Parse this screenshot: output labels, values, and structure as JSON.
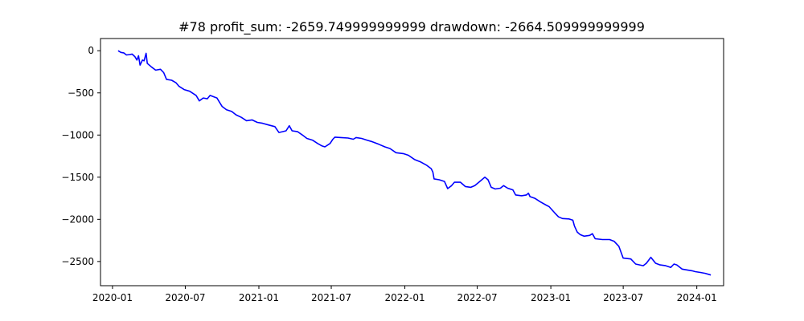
{
  "chart_data": {
    "type": "line",
    "title": "#78   profit_sum: -2659.749999999999 drawdown: -2664.509999999999",
    "xlabel": "",
    "ylabel": "",
    "x_axis_type": "date",
    "xlim": [
      "2019-12-02",
      "2024-03-08"
    ],
    "ylim": [
      -2787,
      145
    ],
    "grid": false,
    "x_ticks": [
      {
        "date": "2020-01-01",
        "label": "2020-01"
      },
      {
        "date": "2020-07-01",
        "label": "2020-07"
      },
      {
        "date": "2021-01-01",
        "label": "2021-01"
      },
      {
        "date": "2021-07-01",
        "label": "2021-07"
      },
      {
        "date": "2022-01-01",
        "label": "2022-01"
      },
      {
        "date": "2022-07-01",
        "label": "2022-07"
      },
      {
        "date": "2023-01-01",
        "label": "2023-01"
      },
      {
        "date": "2023-07-01",
        "label": "2023-07"
      },
      {
        "date": "2024-01-01",
        "label": "2024-01"
      }
    ],
    "y_ticks": [
      {
        "value": 0,
        "label": "0"
      },
      {
        "value": -500,
        "label": "−500"
      },
      {
        "value": -1000,
        "label": "−1000"
      },
      {
        "value": -1500,
        "label": "−1500"
      },
      {
        "value": -2000,
        "label": "−2000"
      },
      {
        "value": -2500,
        "label": "−2500"
      }
    ],
    "series": [
      {
        "color": "#0000ff",
        "points": [
          [
            "2020-01-15",
            0
          ],
          [
            "2020-01-22",
            -20
          ],
          [
            "2020-01-29",
            -25
          ],
          [
            "2020-02-05",
            -50
          ],
          [
            "2020-02-12",
            -45
          ],
          [
            "2020-02-19",
            -40
          ],
          [
            "2020-02-26",
            -70
          ],
          [
            "2020-03-02",
            -110
          ],
          [
            "2020-03-06",
            -60
          ],
          [
            "2020-03-10",
            -170
          ],
          [
            "2020-03-16",
            -110
          ],
          [
            "2020-03-20",
            -120
          ],
          [
            "2020-03-25",
            -30
          ],
          [
            "2020-03-28",
            -150
          ],
          [
            "2020-04-08",
            -195
          ],
          [
            "2020-04-18",
            -230
          ],
          [
            "2020-04-30",
            -220
          ],
          [
            "2020-05-08",
            -260
          ],
          [
            "2020-05-15",
            -340
          ],
          [
            "2020-05-28",
            -350
          ],
          [
            "2020-06-08",
            -380
          ],
          [
            "2020-06-15",
            -420
          ],
          [
            "2020-06-28",
            -460
          ],
          [
            "2020-07-12",
            -480
          ],
          [
            "2020-07-28",
            -530
          ],
          [
            "2020-08-05",
            -595
          ],
          [
            "2020-08-15",
            -560
          ],
          [
            "2020-08-25",
            -570
          ],
          [
            "2020-09-01",
            -530
          ],
          [
            "2020-09-18",
            -560
          ],
          [
            "2020-10-01",
            -660
          ],
          [
            "2020-10-12",
            -700
          ],
          [
            "2020-10-25",
            -720
          ],
          [
            "2020-11-05",
            -760
          ],
          [
            "2020-11-18",
            -790
          ],
          [
            "2020-12-01",
            -830
          ],
          [
            "2020-12-15",
            -820
          ],
          [
            "2020-12-28",
            -850
          ],
          [
            "2021-01-10",
            -860
          ],
          [
            "2021-01-25",
            -880
          ],
          [
            "2021-02-10",
            -900
          ],
          [
            "2021-02-20",
            -970
          ],
          [
            "2021-03-01",
            -960
          ],
          [
            "2021-03-10",
            -950
          ],
          [
            "2021-03-18",
            -890
          ],
          [
            "2021-03-25",
            -950
          ],
          [
            "2021-04-08",
            -960
          ],
          [
            "2021-04-20",
            -1000
          ],
          [
            "2021-05-01",
            -1040
          ],
          [
            "2021-05-15",
            -1060
          ],
          [
            "2021-05-28",
            -1100
          ],
          [
            "2021-06-08",
            -1130
          ],
          [
            "2021-06-15",
            -1140
          ],
          [
            "2021-06-28",
            -1100
          ],
          [
            "2021-07-05",
            -1050
          ],
          [
            "2021-07-10",
            -1025
          ],
          [
            "2021-07-25",
            -1030
          ],
          [
            "2021-08-12",
            -1035
          ],
          [
            "2021-08-25",
            -1050
          ],
          [
            "2021-09-01",
            -1030
          ],
          [
            "2021-09-15",
            -1040
          ],
          [
            "2021-09-28",
            -1060
          ],
          [
            "2021-10-12",
            -1080
          ],
          [
            "2021-10-28",
            -1110
          ],
          [
            "2021-11-12",
            -1140
          ],
          [
            "2021-11-25",
            -1160
          ],
          [
            "2021-12-10",
            -1210
          ],
          [
            "2021-12-28",
            -1220
          ],
          [
            "2022-01-10",
            -1240
          ],
          [
            "2022-01-25",
            -1290
          ],
          [
            "2022-02-10",
            -1320
          ],
          [
            "2022-02-25",
            -1360
          ],
          [
            "2022-03-08",
            -1400
          ],
          [
            "2022-03-12",
            -1440
          ],
          [
            "2022-03-15",
            -1520
          ],
          [
            "2022-03-28",
            -1530
          ],
          [
            "2022-04-10",
            -1550
          ],
          [
            "2022-04-18",
            -1635
          ],
          [
            "2022-04-28",
            -1600
          ],
          [
            "2022-05-05",
            -1560
          ],
          [
            "2022-05-20",
            -1560
          ],
          [
            "2022-06-01",
            -1610
          ],
          [
            "2022-06-15",
            -1620
          ],
          [
            "2022-06-25",
            -1600
          ],
          [
            "2022-07-10",
            -1540
          ],
          [
            "2022-07-20",
            -1500
          ],
          [
            "2022-07-28",
            -1530
          ],
          [
            "2022-08-05",
            -1620
          ],
          [
            "2022-08-15",
            -1640
          ],
          [
            "2022-08-28",
            -1630
          ],
          [
            "2022-09-05",
            -1600
          ],
          [
            "2022-09-15",
            -1630
          ],
          [
            "2022-09-28",
            -1650
          ],
          [
            "2022-10-05",
            -1710
          ],
          [
            "2022-10-20",
            -1720
          ],
          [
            "2022-11-01",
            -1710
          ],
          [
            "2022-11-06",
            -1690
          ],
          [
            "2022-11-10",
            -1730
          ],
          [
            "2022-11-22",
            -1750
          ],
          [
            "2022-12-05",
            -1790
          ],
          [
            "2022-12-20",
            -1830
          ],
          [
            "2022-12-28",
            -1850
          ],
          [
            "2023-01-10",
            -1920
          ],
          [
            "2023-01-20",
            -1970
          ],
          [
            "2023-01-30",
            -1990
          ],
          [
            "2023-02-15",
            -1995
          ],
          [
            "2023-02-25",
            -2010
          ],
          [
            "2023-03-01",
            -2080
          ],
          [
            "2023-03-08",
            -2150
          ],
          [
            "2023-03-15",
            -2180
          ],
          [
            "2023-03-25",
            -2200
          ],
          [
            "2023-04-08",
            -2190
          ],
          [
            "2023-04-15",
            -2170
          ],
          [
            "2023-04-22",
            -2230
          ],
          [
            "2023-05-10",
            -2240
          ],
          [
            "2023-05-28",
            -2240
          ],
          [
            "2023-06-08",
            -2260
          ],
          [
            "2023-06-20",
            -2320
          ],
          [
            "2023-07-01",
            -2460
          ],
          [
            "2023-07-20",
            -2470
          ],
          [
            "2023-08-01",
            -2530
          ],
          [
            "2023-08-20",
            -2550
          ],
          [
            "2023-08-28",
            -2520
          ],
          [
            "2023-09-08",
            -2450
          ],
          [
            "2023-09-20",
            -2520
          ],
          [
            "2023-10-01",
            -2540
          ],
          [
            "2023-10-15",
            -2550
          ],
          [
            "2023-10-28",
            -2570
          ],
          [
            "2023-11-05",
            -2530
          ],
          [
            "2023-11-12",
            -2540
          ],
          [
            "2023-11-25",
            -2590
          ],
          [
            "2023-12-08",
            -2600
          ],
          [
            "2023-12-20",
            -2610
          ],
          [
            "2023-12-28",
            -2620
          ],
          [
            "2024-01-10",
            -2630
          ],
          [
            "2024-01-22",
            -2640
          ],
          [
            "2024-02-05",
            -2660
          ]
        ]
      }
    ]
  }
}
